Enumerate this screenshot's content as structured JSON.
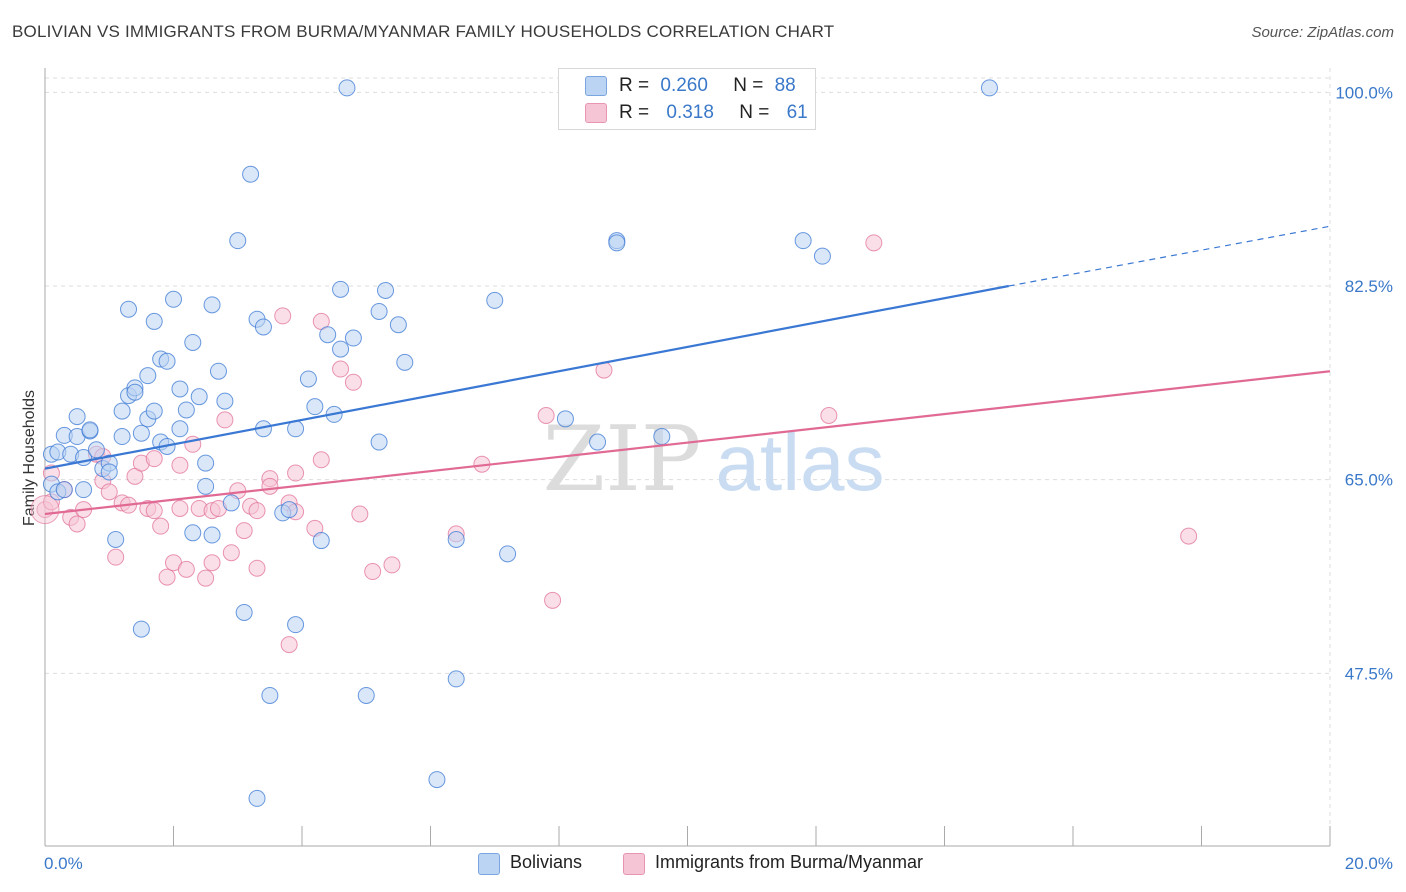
{
  "title": "BOLIVIAN VS IMMIGRANTS FROM BURMA/MYANMAR FAMILY HOUSEHOLDS CORRELATION CHART",
  "source": "Source: ZipAtlas.com",
  "watermark": {
    "zip": "ZIP",
    "atlas": "atlas"
  },
  "colors": {
    "blue": "#3a78d4",
    "blue_fill": "#bcd4f3",
    "pink": "#e06a94",
    "pink_fill": "#f6c5d5",
    "grid": "#dddddd",
    "tick_label": "#3a78c9"
  },
  "legend_top": {
    "rows": [
      {
        "r_label": "R =",
        "r_value": "0.260",
        "n_label": "N =",
        "n_value": "88"
      },
      {
        "r_label": "R =",
        "r_value": "0.318",
        "n_label": "N =",
        "n_value": "61"
      }
    ]
  },
  "legend_bottom": [
    "Bolivians",
    "Immigrants from Burma/Myanmar"
  ],
  "chart_data": {
    "type": "scatter",
    "title": "BOLIVIAN VS IMMIGRANTS FROM BURMA/MYANMAR FAMILY HOUSEHOLDS CORRELATION CHART",
    "xlabel": "",
    "ylabel": "Family Households",
    "xlim": [
      0,
      20
    ],
    "ylim": [
      31.9,
      102.2
    ],
    "x_tick_labels": [
      "0.0%",
      "20.0%"
    ],
    "y_ticks": [
      47.5,
      65.0,
      82.5,
      100.0
    ],
    "y_tick_labels": [
      "47.5%",
      "65.0%",
      "82.5%",
      "100.0%"
    ],
    "x_minor_ticks": [
      0,
      2,
      4,
      6,
      8,
      10,
      12,
      14,
      16,
      18,
      20
    ],
    "series": [
      {
        "name": "Bolivians",
        "color": "#3a78d4",
        "trend": {
          "x0": 0.0,
          "y0": 66.0,
          "x1": 15.0,
          "y1": 82.5,
          "x_dash_end": 20.0,
          "y_dash_end": 87.9
        },
        "points": [
          [
            0.1,
            67.3
          ],
          [
            0.1,
            64.6
          ],
          [
            0.2,
            63.9
          ],
          [
            0.2,
            67.5
          ],
          [
            0.3,
            64.1
          ],
          [
            0.3,
            69.0
          ],
          [
            0.4,
            67.3
          ],
          [
            0.5,
            68.9
          ],
          [
            0.5,
            70.7
          ],
          [
            0.6,
            67.0
          ],
          [
            0.6,
            64.1
          ],
          [
            0.7,
            69.4
          ],
          [
            0.7,
            69.5
          ],
          [
            0.8,
            67.7
          ],
          [
            0.9,
            66.0
          ],
          [
            1.0,
            66.5
          ],
          [
            1.0,
            65.7
          ],
          [
            1.1,
            59.6
          ],
          [
            1.2,
            68.9
          ],
          [
            1.2,
            71.2
          ],
          [
            1.3,
            72.6
          ],
          [
            1.3,
            80.4
          ],
          [
            1.4,
            73.3
          ],
          [
            1.4,
            72.9
          ],
          [
            1.5,
            69.2
          ],
          [
            1.5,
            51.5
          ],
          [
            1.6,
            70.5
          ],
          [
            1.6,
            74.4
          ],
          [
            1.7,
            79.3
          ],
          [
            1.7,
            71.2
          ],
          [
            1.8,
            68.4
          ],
          [
            1.8,
            75.9
          ],
          [
            1.9,
            75.7
          ],
          [
            1.9,
            68.0
          ],
          [
            2.0,
            81.3
          ],
          [
            2.1,
            73.2
          ],
          [
            2.1,
            69.6
          ],
          [
            2.2,
            71.3
          ],
          [
            2.3,
            77.4
          ],
          [
            2.3,
            60.2
          ],
          [
            2.4,
            72.5
          ],
          [
            2.5,
            66.5
          ],
          [
            2.5,
            64.4
          ],
          [
            2.6,
            80.8
          ],
          [
            2.6,
            60.0
          ],
          [
            2.7,
            74.8
          ],
          [
            2.8,
            72.1
          ],
          [
            2.9,
            62.9
          ],
          [
            3.0,
            86.6
          ],
          [
            3.1,
            53.0
          ],
          [
            3.2,
            92.6
          ],
          [
            3.3,
            36.2
          ],
          [
            3.3,
            79.5
          ],
          [
            3.4,
            69.6
          ],
          [
            3.5,
            45.5
          ],
          [
            3.4,
            78.8
          ],
          [
            3.7,
            62.0
          ],
          [
            3.8,
            62.3
          ],
          [
            3.9,
            51.9
          ],
          [
            3.9,
            69.6
          ],
          [
            4.1,
            74.1
          ],
          [
            4.2,
            71.6
          ],
          [
            4.3,
            59.5
          ],
          [
            4.4,
            78.1
          ],
          [
            4.5,
            70.9
          ],
          [
            4.6,
            82.2
          ],
          [
            4.6,
            76.8
          ],
          [
            4.7,
            100.4
          ],
          [
            4.8,
            77.8
          ],
          [
            5.0,
            45.5
          ],
          [
            5.2,
            68.4
          ],
          [
            5.2,
            80.2
          ],
          [
            5.3,
            82.1
          ],
          [
            5.5,
            79.0
          ],
          [
            5.6,
            75.6
          ],
          [
            6.1,
            37.9
          ],
          [
            6.4,
            59.6
          ],
          [
            6.4,
            47.0
          ],
          [
            7.0,
            81.2
          ],
          [
            7.2,
            58.3
          ],
          [
            8.1,
            70.5
          ],
          [
            8.6,
            68.4
          ],
          [
            8.9,
            86.6
          ],
          [
            8.9,
            86.4
          ],
          [
            9.6,
            68.9
          ],
          [
            11.8,
            86.6
          ],
          [
            12.1,
            85.2
          ],
          [
            14.7,
            100.4
          ]
        ]
      },
      {
        "name": "Immigrants from Burma/Myanmar",
        "color": "#e06a94",
        "trend": {
          "x0": 0.0,
          "y0": 61.9,
          "x1": 20.0,
          "y1": 74.8
        },
        "points": [
          [
            0.0,
            62.3
          ],
          [
            0.1,
            63.0
          ],
          [
            0.1,
            65.6
          ],
          [
            0.3,
            64.1
          ],
          [
            0.4,
            61.6
          ],
          [
            0.5,
            61.0
          ],
          [
            0.6,
            62.3
          ],
          [
            0.8,
            67.3
          ],
          [
            0.9,
            67.1
          ],
          [
            0.9,
            64.9
          ],
          [
            1.0,
            63.9
          ],
          [
            1.1,
            58.0
          ],
          [
            1.2,
            62.9
          ],
          [
            1.3,
            62.7
          ],
          [
            1.4,
            65.3
          ],
          [
            1.5,
            66.5
          ],
          [
            1.6,
            62.4
          ],
          [
            1.7,
            62.2
          ],
          [
            1.7,
            66.9
          ],
          [
            1.8,
            60.8
          ],
          [
            1.9,
            56.2
          ],
          [
            2.0,
            57.5
          ],
          [
            2.1,
            62.4
          ],
          [
            2.1,
            66.3
          ],
          [
            2.2,
            56.9
          ],
          [
            2.3,
            68.2
          ],
          [
            2.4,
            62.4
          ],
          [
            2.5,
            56.1
          ],
          [
            2.6,
            57.5
          ],
          [
            2.6,
            62.2
          ],
          [
            2.7,
            62.4
          ],
          [
            2.8,
            70.4
          ],
          [
            2.9,
            58.4
          ],
          [
            3.0,
            64.0
          ],
          [
            3.1,
            60.4
          ],
          [
            3.2,
            62.6
          ],
          [
            3.3,
            57.0
          ],
          [
            3.3,
            62.2
          ],
          [
            3.5,
            65.1
          ],
          [
            3.5,
            64.4
          ],
          [
            3.7,
            79.8
          ],
          [
            3.8,
            50.1
          ],
          [
            3.8,
            62.9
          ],
          [
            3.9,
            62.1
          ],
          [
            3.9,
            65.6
          ],
          [
            4.2,
            60.6
          ],
          [
            4.3,
            79.3
          ],
          [
            4.3,
            66.8
          ],
          [
            4.6,
            75.0
          ],
          [
            4.8,
            73.8
          ],
          [
            4.9,
            61.9
          ],
          [
            5.1,
            56.7
          ],
          [
            5.4,
            57.3
          ],
          [
            6.4,
            60.1
          ],
          [
            6.8,
            66.4
          ],
          [
            7.8,
            70.8
          ],
          [
            7.9,
            54.1
          ],
          [
            8.7,
            74.9
          ],
          [
            12.2,
            70.8
          ],
          [
            12.9,
            86.4
          ],
          [
            17.8,
            59.9
          ]
        ]
      }
    ]
  }
}
